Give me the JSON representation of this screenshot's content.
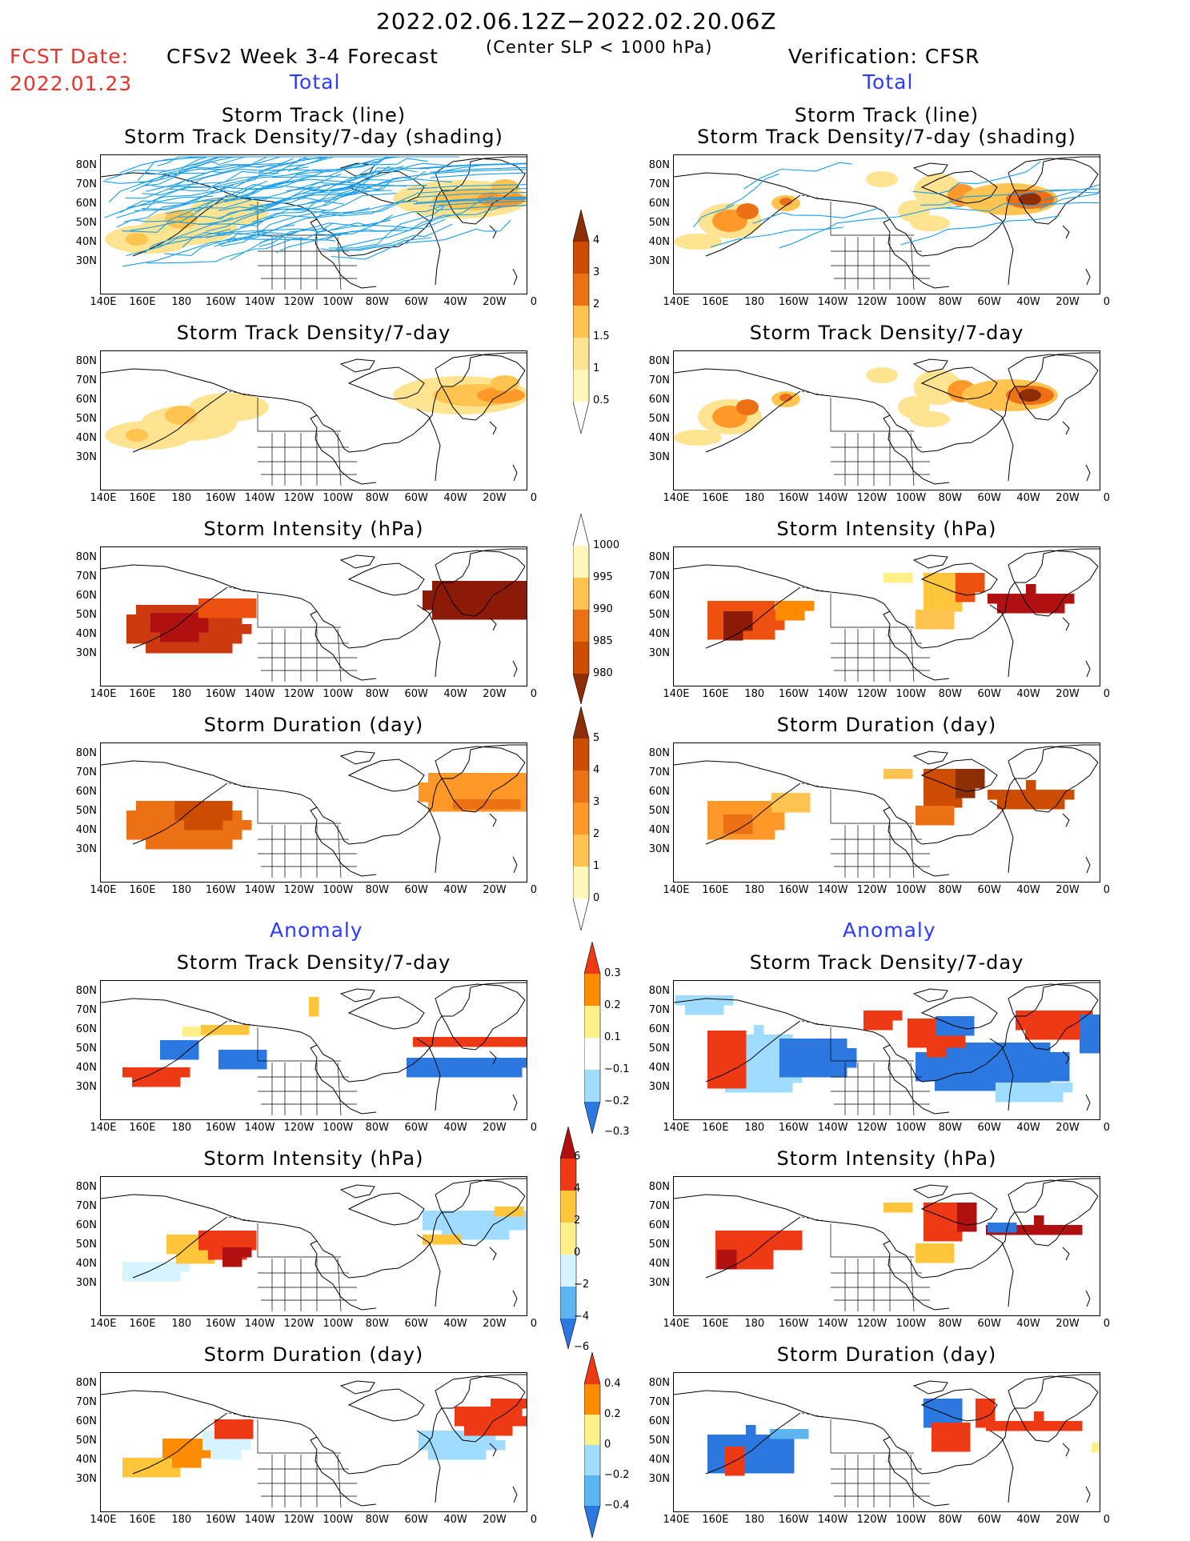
{
  "header": {
    "date_range": "2022.02.06.12Z−2022.02.20.06Z",
    "criterion": "(Center SLP < 1000 hPa)",
    "fcst_label": "FCST Date:",
    "fcst_date": "2022.01.23",
    "forecast_title": "CFSv2 Week 3-4 Forecast",
    "verification_title": "Verification: CFSR",
    "total_left": "Total",
    "total_right": "Total",
    "anomaly_left": "Anomaly",
    "anomaly_right": "Anomaly"
  },
  "panels": {
    "track_line": "Storm Track (line)",
    "track_shading": "Storm Track Density/7-day (shading)",
    "density": "Storm Track Density/7-day",
    "intensity": "Storm Intensity (hPa)",
    "duration": "Storm Duration (day)"
  },
  "axes": {
    "lat_labels": [
      "80N",
      "70N",
      "60N",
      "50N",
      "40N",
      "30N"
    ],
    "lon_labels": [
      "140E",
      "160E",
      "180",
      "160W",
      "140W",
      "120W",
      "100W",
      "80W",
      "60W",
      "40W",
      "20W",
      "0"
    ]
  },
  "colorbars": {
    "density_total": [
      "4",
      "3",
      "2",
      "1.5",
      "1",
      "0.5"
    ],
    "intensity_total": [
      "1000",
      "995",
      "990",
      "985",
      "980"
    ],
    "duration_total": [
      "5",
      "4",
      "3",
      "2",
      "1",
      "0"
    ],
    "density_anom": [
      "0.3",
      "0.2",
      "0.1",
      "−0.1",
      "−0.2",
      "−0.3"
    ],
    "intensity_anom": [
      "6",
      "4",
      "2",
      "0",
      "−2",
      "−4",
      "−6"
    ],
    "duration_anom": [
      "0.4",
      "0.2",
      "0",
      "−0.2",
      "−0.4"
    ]
  },
  "colors": {
    "title_red": "#e8332a",
    "title_blue": "#2c3cff",
    "dens_scale": [
      "#fff7bc",
      "#fee391",
      "#fec44f",
      "#fe9929",
      "#ec7014",
      "#cc4c02",
      "#8c2d04"
    ],
    "anom_pos": [
      "#fff08a",
      "#ffc63c",
      "#ff8c00",
      "#ee3a14",
      "#b01010"
    ],
    "anom_neg": [
      "#d6f4ff",
      "#9fdcff",
      "#5cb4f0",
      "#2a78e0"
    ],
    "track_line": "#1a9ee8"
  }
}
